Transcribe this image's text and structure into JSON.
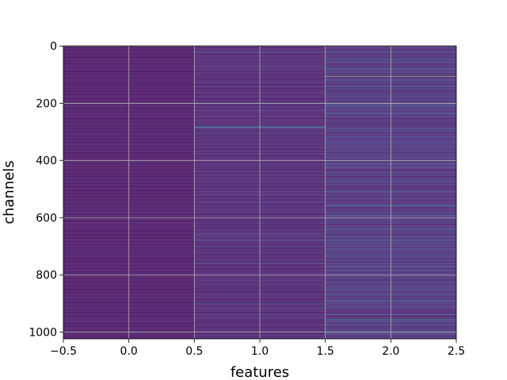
{
  "chart_data": {
    "type": "heatmap",
    "title": "",
    "xlabel": "features",
    "ylabel": "channels",
    "xlim": [
      -0.5,
      2.5
    ],
    "ylim": [
      1023.5,
      -0.5
    ],
    "x_ticks": [
      -0.5,
      0.0,
      0.5,
      1.0,
      1.5,
      2.0,
      2.5
    ],
    "x_tick_labels": [
      "−0.5",
      "0.0",
      "0.5",
      "1.0",
      "1.5",
      "2.0",
      "2.5"
    ],
    "y_ticks": [
      0,
      200,
      400,
      600,
      800,
      1000
    ],
    "y_tick_labels": [
      "0",
      "200",
      "400",
      "600",
      "800",
      "1000"
    ],
    "grid": true,
    "colormap": "viridis",
    "n_rows": 1024,
    "features": [
      0,
      1,
      2
    ],
    "base_level": [
      0.05,
      0.1,
      0.15
    ],
    "highlights": [
      {
        "feature": 0,
        "rows": [
          800,
          1000
        ],
        "value": 0.35
      },
      {
        "feature": 1,
        "rows": [
          20,
          283,
          286,
          290,
          420,
          470,
          520,
          545,
          600,
          660,
          680,
          700,
          760,
          840,
          900,
          950,
          1000
        ],
        "value": 0.35
      },
      {
        "feature": 1,
        "rows": [
          282,
          284
        ],
        "value": 0.45
      },
      {
        "feature": 2,
        "rows": [
          48,
          80,
          140,
          210,
          220,
          290,
          350,
          385,
          395,
          410,
          445,
          470,
          510,
          555,
          560,
          590,
          640,
          690,
          710,
          730,
          770,
          800,
          850,
          890,
          960,
          1005
        ],
        "value": 0.4
      },
      {
        "feature": 2,
        "rows": [
          680,
          955
        ],
        "value": 0.55
      },
      {
        "feature": 2,
        "rows": [
          107
        ],
        "value": 0.95
      }
    ]
  }
}
